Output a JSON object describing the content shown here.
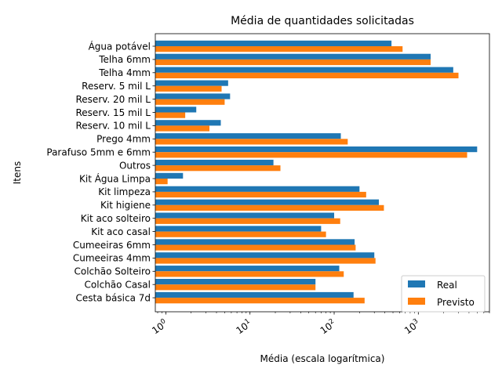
{
  "chart_data": {
    "type": "bar",
    "orientation": "horizontal",
    "title": "Média de quantidades solicitadas",
    "xlabel": "Média (escala logarítmica)",
    "ylabel": "Itens",
    "xscale": "log",
    "xlim": [
      0.75,
      7000
    ],
    "x_ticks": [
      {
        "value": 1,
        "base": "10",
        "exp": "0"
      },
      {
        "value": 10,
        "base": "10",
        "exp": "1"
      },
      {
        "value": 100,
        "base": "10",
        "exp": "2"
      },
      {
        "value": 1000,
        "base": "10",
        "exp": "3"
      }
    ],
    "categories": [
      "Água potável",
      "Telha 6mm",
      "Telha 4mm",
      "Reserv. 5 mil L",
      "Reserv. 20 mil L",
      "Reserv. 15 mil L",
      "Reserv. 10 mil L",
      "Prego 4mm",
      "Parafuso 5mm e 6mm",
      "Outros",
      "Kit Água Limpa",
      "Kit limpeza",
      "Kit higiene",
      "Kit aco solteiro",
      "Kit aco casal",
      "Cumeeiras 6mm",
      "Cumeeiras 4mm",
      "Colchão Solteiro",
      "Colchão Casal",
      "Cesta básica 7d"
    ],
    "series": [
      {
        "name": "Real",
        "color": "#1f77b4",
        "values": [
          480,
          1400,
          2600,
          5.5,
          5.8,
          2.3,
          4.5,
          120,
          5000,
          19,
          1.6,
          200,
          340,
          100,
          70,
          175,
          300,
          115,
          60,
          170
        ]
      },
      {
        "name": "Previsto",
        "color": "#ff7f0e",
        "values": [
          650,
          1400,
          3000,
          4.6,
          5.0,
          1.7,
          3.3,
          145,
          3800,
          23,
          1.05,
          240,
          390,
          118,
          80,
          180,
          310,
          130,
          60,
          230
        ]
      }
    ],
    "legend_position": "lower-right",
    "grid": false
  }
}
